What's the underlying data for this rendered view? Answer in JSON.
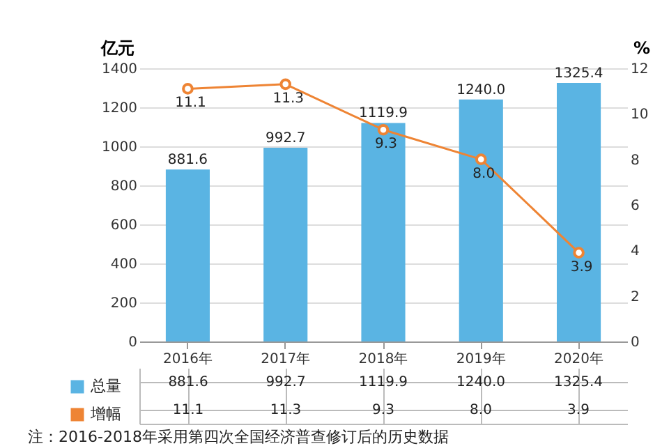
{
  "chart_data": {
    "type": "bar",
    "categories": [
      "2016年",
      "2017年",
      "2018年",
      "2019年",
      "2020年"
    ],
    "series": [
      {
        "name": "总量",
        "color": "#5ab4e3",
        "values": [
          881.6,
          992.7,
          1119.9,
          1240.0,
          1325.4
        ],
        "value_labels": [
          "881.6",
          "992.7",
          "1119.9",
          "1240.0",
          "1325.4"
        ]
      },
      {
        "name": "增幅",
        "type": "line",
        "axis": "y2",
        "color": "#ee8434",
        "values": [
          11.1,
          11.3,
          9.3,
          8.0,
          3.9
        ],
        "value_labels": [
          "11.1",
          "11.3",
          "9.3",
          "8.0",
          "3.9"
        ]
      }
    ],
    "ylabel": "亿元",
    "y2label": "%",
    "ylim": [
      0,
      1400
    ],
    "yticks": [
      0,
      200,
      400,
      600,
      800,
      1000,
      1200,
      1400
    ],
    "y2lim": [
      0,
      12
    ],
    "y2ticks": [
      0,
      2,
      4,
      6,
      8,
      10,
      12
    ],
    "grid": "y",
    "legend": "bottom left",
    "marker": "circle",
    "line_style": "solid",
    "data_labels": true,
    "annotations": [
      "注：2016-2018年采用第四次全国经济普查修订后的历史数据"
    ]
  }
}
